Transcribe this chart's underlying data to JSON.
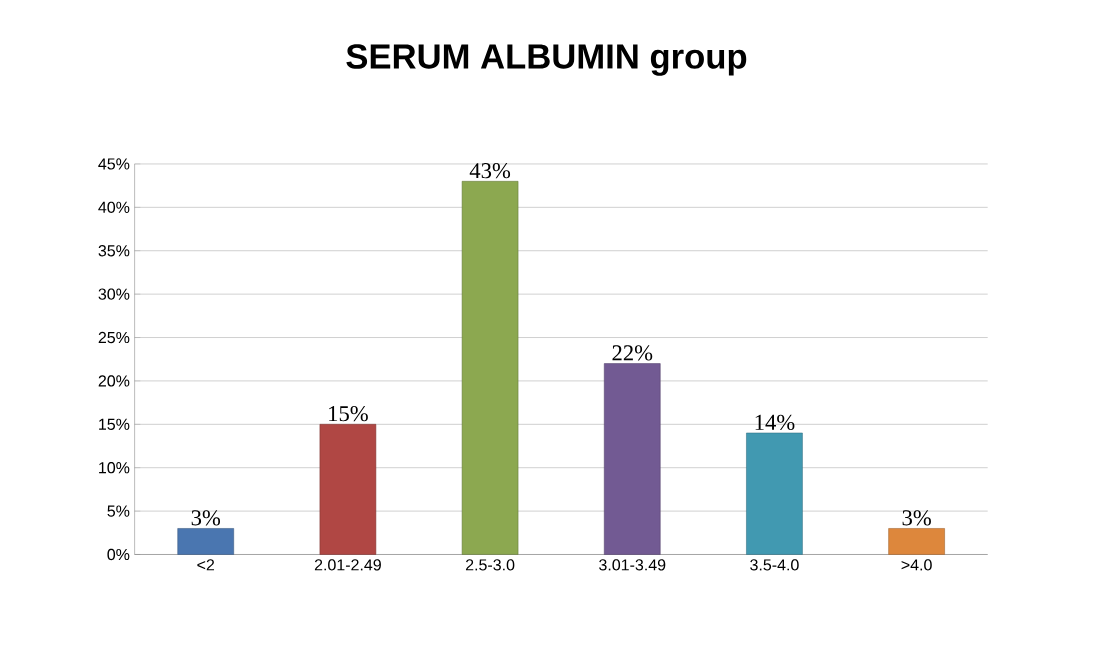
{
  "chart_data": {
    "type": "bar",
    "title": "SERUM ALBUMIN  group",
    "categories": [
      "<2",
      "2.01-2.49",
      "2.5-3.0",
      "3.01-3.49",
      "3.5-4.0",
      ">4.0"
    ],
    "values": [
      3,
      15,
      43,
      22,
      14,
      3
    ],
    "value_labels": [
      "3%",
      "15%",
      "43%",
      "22%",
      "14%",
      "3%"
    ],
    "colors": [
      "#4a76b0",
      "#b04744",
      "#8ca850",
      "#725a93",
      "#4199b1",
      "#dd873c"
    ],
    "ylim": [
      0,
      45
    ],
    "yticks": [
      {
        "value": 0,
        "label": "0%"
      },
      {
        "value": 5,
        "label": "5%"
      },
      {
        "value": 10,
        "label": "10%"
      },
      {
        "value": 15,
        "label": "15%"
      },
      {
        "value": 20,
        "label": "20%"
      },
      {
        "value": 25,
        "label": "25%"
      },
      {
        "value": 30,
        "label": "30%"
      },
      {
        "value": 35,
        "label": "35%"
      },
      {
        "value": 40,
        "label": "40%"
      },
      {
        "value": 45,
        "label": "45%"
      }
    ],
    "grid": "y"
  }
}
